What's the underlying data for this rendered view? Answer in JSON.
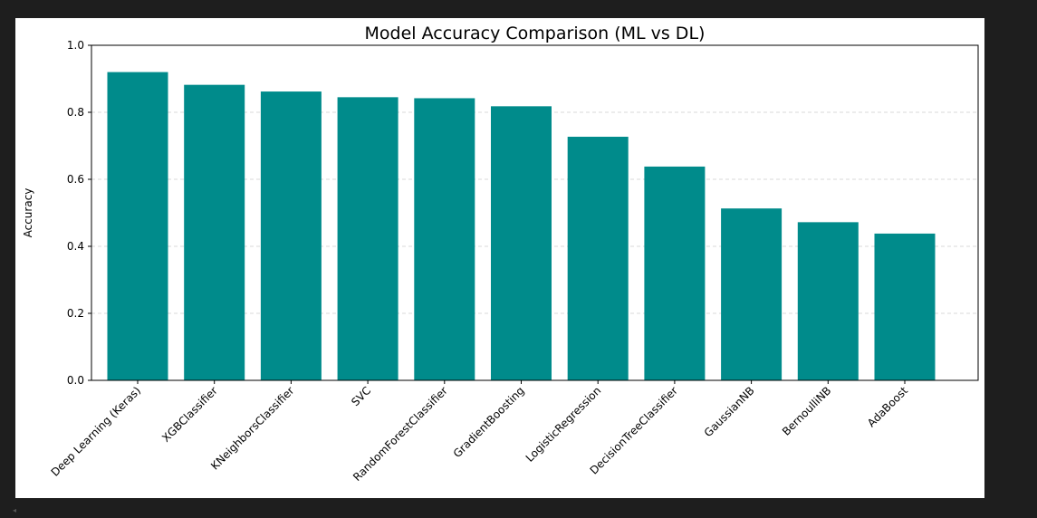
{
  "chart_data": {
    "type": "bar",
    "title": "Model Accuracy Comparison (ML vs DL)",
    "xlabel": "",
    "ylabel": "Accuracy",
    "categories": [
      "Deep Learning (Keras)",
      "XGBClassifier",
      "KNeighborsClassifier",
      "SVC",
      "RandomForestClassifier",
      "GradientBoosting",
      "LogisticRegression",
      "DecisionTreeClassifier",
      "GaussianNB",
      "BernoulliNB",
      "AdaBoost"
    ],
    "values": [
      0.92,
      0.882,
      0.862,
      0.845,
      0.842,
      0.818,
      0.727,
      0.638,
      0.513,
      0.472,
      0.438
    ],
    "ylim": [
      0,
      1.0
    ],
    "yticks": [
      "0.0",
      "0.2",
      "0.4",
      "0.6",
      "0.8",
      "1.0"
    ],
    "grid": "y-dashed",
    "bar_color": "#008b8b",
    "grid_color": "#cccccc"
  }
}
